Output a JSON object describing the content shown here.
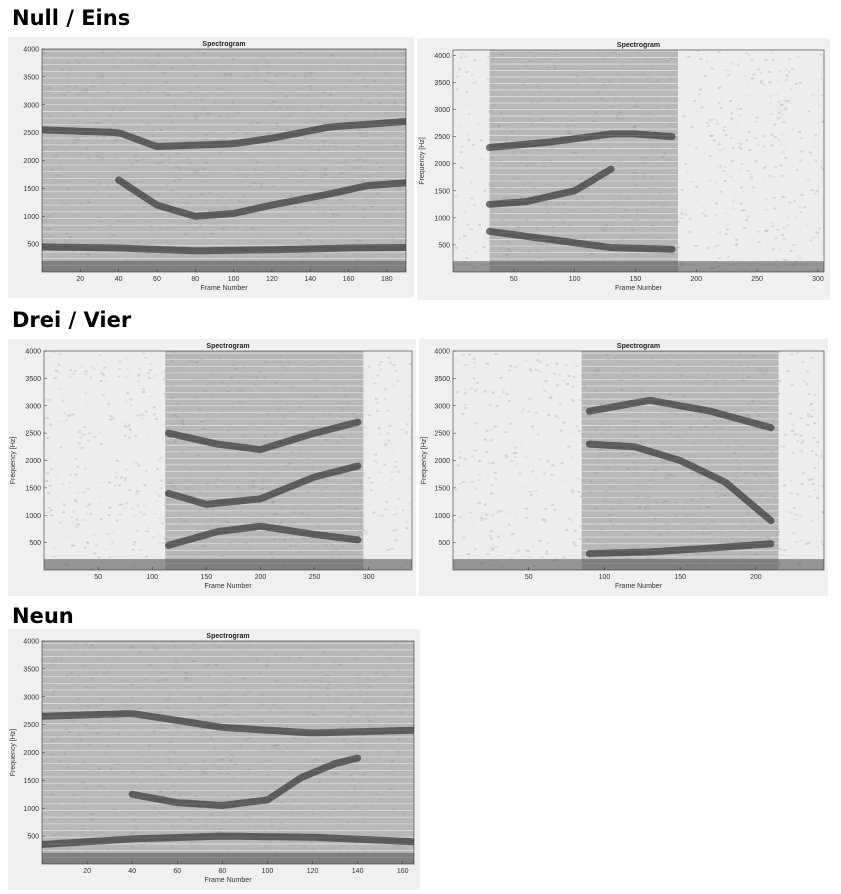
{
  "sections": [
    {
      "title": "Null / Eins"
    },
    {
      "title": "Drei / Vier"
    },
    {
      "title": "Neun"
    }
  ],
  "colors": {
    "plot_background": "#ededed",
    "harmonic_dark": "#1e1e1e",
    "harmonic_light": "#ffffff",
    "axes": "#333333"
  },
  "chart_data": [
    {
      "type": "heatmap",
      "title": "Spectrogram",
      "xlabel": "Frame Number",
      "ylabel": "",
      "xlim": [
        0,
        190
      ],
      "ylim": [
        0,
        4000
      ],
      "xticks": [
        20,
        40,
        60,
        80,
        100,
        120,
        140,
        160,
        180
      ],
      "yticks": [
        500,
        1000,
        1500,
        2000,
        2500,
        3000,
        3500,
        4000
      ],
      "speech_segments": [
        [
          0,
          190
        ]
      ],
      "formant_tracks": [
        {
          "x": [
            0,
            40,
            80,
            120,
            160,
            190
          ],
          "y": [
            450,
            430,
            380,
            400,
            430,
            440
          ]
        },
        {
          "x": [
            40,
            60,
            80,
            100,
            120,
            150,
            170,
            190
          ],
          "y": [
            1650,
            1200,
            1000,
            1050,
            1200,
            1400,
            1550,
            1600
          ]
        },
        {
          "x": [
            0,
            40,
            60,
            100,
            120,
            150,
            190
          ],
          "y": [
            2550,
            2500,
            2250,
            2300,
            2400,
            2600,
            2700
          ]
        }
      ],
      "grid": false
    },
    {
      "type": "heatmap",
      "title": "Spectrogram",
      "xlabel": "Frame Number",
      "ylabel": "Frequency [Hz]",
      "xlim": [
        0,
        305
      ],
      "ylim": [
        0,
        4100
      ],
      "xticks": [
        50,
        100,
        150,
        200,
        250,
        300
      ],
      "yticks": [
        500,
        1000,
        1500,
        2000,
        2500,
        3000,
        3500,
        4000
      ],
      "speech_segments": [
        [
          30,
          135
        ],
        [
          135,
          185
        ]
      ],
      "formant_tracks": [
        {
          "x": [
            30,
            80,
            130,
            180
          ],
          "y": [
            750,
            600,
            450,
            420
          ]
        },
        {
          "x": [
            30,
            60,
            100,
            130
          ],
          "y": [
            1250,
            1300,
            1500,
            1900
          ]
        },
        {
          "x": [
            30,
            80,
            130,
            150,
            180
          ],
          "y": [
            2300,
            2400,
            2550,
            2550,
            2500
          ]
        }
      ],
      "grid": false
    },
    {
      "type": "heatmap",
      "title": "Spectrogram",
      "xlabel": "Frame Number",
      "ylabel": "Frequency [Hz]",
      "xlim": [
        0,
        340
      ],
      "ylim": [
        0,
        4000
      ],
      "xticks": [
        50,
        100,
        150,
        200,
        250,
        300
      ],
      "yticks": [
        500,
        1000,
        1500,
        2000,
        2500,
        3000,
        3500,
        4000
      ],
      "speech_segments": [
        [
          112,
          295
        ]
      ],
      "formant_tracks": [
        {
          "x": [
            115,
            160,
            200,
            250,
            290
          ],
          "y": [
            450,
            700,
            800,
            650,
            550
          ]
        },
        {
          "x": [
            115,
            150,
            200,
            250,
            290
          ],
          "y": [
            1400,
            1200,
            1300,
            1700,
            1900
          ]
        },
        {
          "x": [
            115,
            160,
            200,
            250,
            290
          ],
          "y": [
            2500,
            2300,
            2200,
            2500,
            2700
          ]
        }
      ],
      "grid": false
    },
    {
      "type": "heatmap",
      "title": "Spectrogram",
      "xlabel": "Frame Number",
      "ylabel": "Frequency [Hz]",
      "xlim": [
        0,
        245
      ],
      "ylim": [
        0,
        4000
      ],
      "xticks": [
        50,
        100,
        150,
        200
      ],
      "yticks": [
        500,
        1000,
        1500,
        2000,
        2500,
        3000,
        3500,
        4000
      ],
      "speech_segments": [
        [
          85,
          215
        ]
      ],
      "formant_tracks": [
        {
          "x": [
            90,
            130,
            170,
            210
          ],
          "y": [
            300,
            330,
            400,
            480
          ]
        },
        {
          "x": [
            90,
            120,
            150,
            180,
            210
          ],
          "y": [
            2300,
            2250,
            2000,
            1600,
            900
          ]
        },
        {
          "x": [
            90,
            130,
            170,
            210
          ],
          "y": [
            2900,
            3100,
            2900,
            2600
          ]
        }
      ],
      "grid": false
    },
    {
      "type": "heatmap",
      "title": "Spectrogram",
      "xlabel": "Frame Number",
      "ylabel": "Frequency [Hz]",
      "xlim": [
        0,
        165
      ],
      "ylim": [
        0,
        4000
      ],
      "xticks": [
        20,
        40,
        60,
        80,
        100,
        120,
        140,
        160
      ],
      "yticks": [
        500,
        1000,
        1500,
        2000,
        2500,
        3000,
        3500,
        4000
      ],
      "speech_segments": [
        [
          0,
          165
        ]
      ],
      "formant_tracks": [
        {
          "x": [
            0,
            40,
            80,
            120,
            165
          ],
          "y": [
            350,
            450,
            500,
            480,
            400
          ]
        },
        {
          "x": [
            40,
            60,
            80,
            100,
            115,
            130,
            140
          ],
          "y": [
            1250,
            1100,
            1050,
            1150,
            1550,
            1800,
            1900
          ]
        },
        {
          "x": [
            0,
            40,
            80,
            120,
            165
          ],
          "y": [
            2650,
            2700,
            2450,
            2350,
            2400
          ]
        }
      ],
      "grid": false
    }
  ]
}
